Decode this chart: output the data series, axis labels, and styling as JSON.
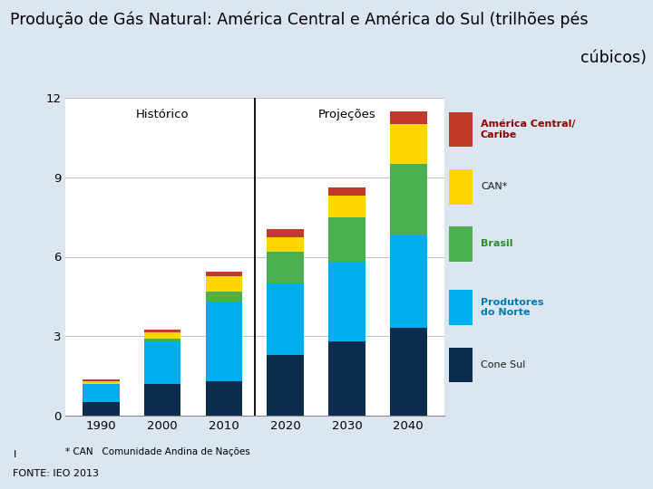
{
  "title_line1": "Produção de Gás Natural: América Central e América do Sul (trilhões pés",
  "title_line2": "cúbicos)",
  "years": [
    1990,
    2000,
    2010,
    2020,
    2030,
    2040
  ],
  "historico_label": "Histórico",
  "projecoes_label": "Projeções",
  "footnote": "* CAN   Comunidade Andina de Nações",
  "fonte": "FONTE: IEO 2013",
  "segments": {
    "Cone Sul": {
      "values": [
        0.5,
        1.2,
        1.3,
        2.3,
        2.8,
        3.3
      ],
      "color": "#0d2d4e"
    },
    "Produtores do Norte": {
      "values": [
        0.7,
        1.6,
        3.0,
        2.7,
        3.0,
        3.5
      ],
      "color": "#00aeef"
    },
    "Brasil": {
      "values": [
        0.0,
        0.1,
        0.4,
        1.2,
        1.7,
        2.7
      ],
      "color": "#4caf50"
    },
    "CAN*": {
      "values": [
        0.1,
        0.25,
        0.55,
        0.55,
        0.8,
        1.5
      ],
      "color": "#ffd700"
    },
    "America Central Caribe": {
      "values": [
        0.07,
        0.1,
        0.2,
        0.3,
        0.3,
        0.5
      ],
      "color": "#c0392b"
    }
  },
  "ylim": [
    0,
    12
  ],
  "yticks": [
    0,
    3,
    6,
    9,
    12
  ],
  "outer_bg_color": "#dce6f1",
  "panel_bg_color": "#dce6f1",
  "plot_bg_color": "#f0f4f9",
  "title_bg_color": "#808080",
  "title_left_color": "#5a5a7a",
  "legend_labels": [
    "América Central/\nCaribe",
    "CAN*",
    "Brasil",
    "Produtores\ndo Norte",
    "Cone Sul"
  ],
  "legend_colors": [
    "#c0392b",
    "#ffd700",
    "#4caf50",
    "#00aeef",
    "#0d2d4e"
  ],
  "legend_text_colors": [
    "#8b0000",
    "#1a1a1a",
    "#2d8a2d",
    "#007bb5",
    "#1a1a1a"
  ]
}
